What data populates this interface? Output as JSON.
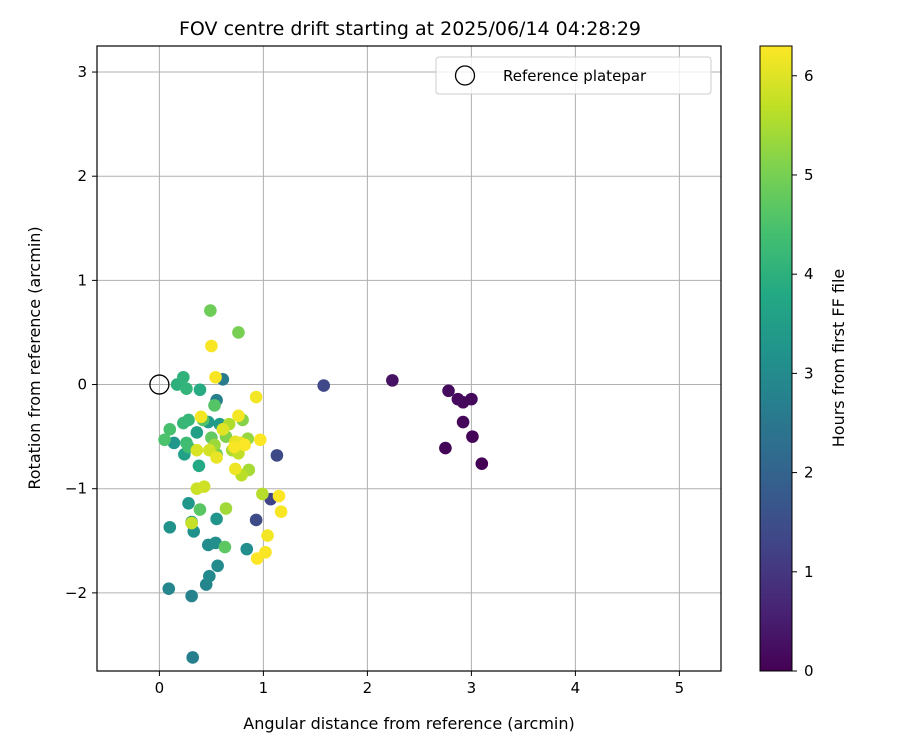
{
  "chart_data": {
    "type": "scatter",
    "title": "FOV centre drift starting at 2025/06/14 04:28:29",
    "xlabel": "Angular distance from reference (arcmin)",
    "ylabel": "Rotation from reference (arcmin)",
    "xlim": [
      -0.6,
      5.4
    ],
    "ylim": [
      -2.75,
      3.25
    ],
    "xticks": [
      0,
      1,
      2,
      3,
      4,
      5
    ],
    "yticks": [
      -2,
      -1,
      0,
      1,
      2,
      3
    ],
    "grid": true,
    "legend": {
      "placement": "top-right",
      "entries": [
        "Reference platepar"
      ]
    },
    "reference": {
      "x": 0,
      "y": 0
    },
    "colorbar": {
      "label": "Hours from first FF file",
      "colormap": "viridis",
      "range": [
        0,
        6.3
      ],
      "ticks": [
        0,
        1,
        2,
        3,
        4,
        5,
        6
      ]
    },
    "points": [
      {
        "x": 3.1,
        "y": -0.76,
        "c": 0.02
      },
      {
        "x": 3.01,
        "y": -0.5,
        "c": 0.05
      },
      {
        "x": 2.75,
        "y": -0.61,
        "c": 0.07
      },
      {
        "x": 2.92,
        "y": -0.36,
        "c": 0.1
      },
      {
        "x": 2.92,
        "y": -0.17,
        "c": 0.12
      },
      {
        "x": 3.0,
        "y": -0.14,
        "c": 0.15
      },
      {
        "x": 2.87,
        "y": -0.14,
        "c": 0.17
      },
      {
        "x": 2.78,
        "y": -0.06,
        "c": 0.2
      },
      {
        "x": 2.24,
        "y": 0.04,
        "c": 0.3
      },
      {
        "x": 1.58,
        "y": -0.01,
        "c": 1.35
      },
      {
        "x": 1.13,
        "y": -0.68,
        "c": 1.4
      },
      {
        "x": 1.07,
        "y": -1.1,
        "c": 1.25
      },
      {
        "x": 0.93,
        "y": -1.3,
        "c": 1.45
      },
      {
        "x": 0.61,
        "y": 0.05,
        "c": 2.6
      },
      {
        "x": 0.55,
        "y": -0.15,
        "c": 2.7
      },
      {
        "x": 0.32,
        "y": -2.62,
        "c": 2.7
      },
      {
        "x": 0.31,
        "y": -2.03,
        "c": 2.8
      },
      {
        "x": 0.09,
        "y": -1.96,
        "c": 2.9
      },
      {
        "x": 0.45,
        "y": -1.92,
        "c": 2.85
      },
      {
        "x": 0.48,
        "y": -1.84,
        "c": 2.95
      },
      {
        "x": 0.56,
        "y": -1.74,
        "c": 3.0
      },
      {
        "x": 0.47,
        "y": -1.54,
        "c": 3.05
      },
      {
        "x": 0.54,
        "y": -1.52,
        "c": 3.1
      },
      {
        "x": 0.84,
        "y": -1.58,
        "c": 3.1
      },
      {
        "x": 0.33,
        "y": -1.41,
        "c": 3.15
      },
      {
        "x": 0.1,
        "y": -1.37,
        "c": 3.2
      },
      {
        "x": 0.55,
        "y": -1.29,
        "c": 3.25
      },
      {
        "x": 0.31,
        "y": -1.32,
        "c": 3.25
      },
      {
        "x": 0.28,
        "y": -1.14,
        "c": 3.3
      },
      {
        "x": 0.14,
        "y": -0.56,
        "c": 3.3
      },
      {
        "x": 0.47,
        "y": -0.36,
        "c": 3.4
      },
      {
        "x": 0.58,
        "y": -0.38,
        "c": 3.45
      },
      {
        "x": 0.36,
        "y": -0.46,
        "c": 3.55
      },
      {
        "x": 0.24,
        "y": -0.67,
        "c": 3.6
      },
      {
        "x": 0.38,
        "y": -0.78,
        "c": 3.8
      },
      {
        "x": 0.39,
        "y": -0.05,
        "c": 3.85
      },
      {
        "x": 0.17,
        "y": 0.0,
        "c": 4.0
      },
      {
        "x": 0.23,
        "y": 0.07,
        "c": 4.05
      },
      {
        "x": 0.26,
        "y": -0.04,
        "c": 4.1
      },
      {
        "x": 0.28,
        "y": -0.34,
        "c": 4.15
      },
      {
        "x": 0.23,
        "y": -0.37,
        "c": 4.2
      },
      {
        "x": 0.26,
        "y": -0.56,
        "c": 4.3
      },
      {
        "x": 0.28,
        "y": -0.6,
        "c": 4.35
      },
      {
        "x": 0.1,
        "y": -0.43,
        "c": 4.45
      },
      {
        "x": 0.05,
        "y": -0.53,
        "c": 4.5
      },
      {
        "x": 0.42,
        "y": -0.34,
        "c": 4.55
      },
      {
        "x": 0.53,
        "y": -0.2,
        "c": 4.6
      },
      {
        "x": 0.39,
        "y": -1.2,
        "c": 4.65
      },
      {
        "x": 0.63,
        "y": -1.56,
        "c": 4.7
      },
      {
        "x": 0.5,
        "y": -0.51,
        "c": 4.75
      },
      {
        "x": 0.55,
        "y": -0.67,
        "c": 4.85
      },
      {
        "x": 0.49,
        "y": 0.71,
        "c": 4.9
      },
      {
        "x": 0.76,
        "y": 0.5,
        "c": 5.0
      },
      {
        "x": 0.64,
        "y": -0.5,
        "c": 5.1
      },
      {
        "x": 0.8,
        "y": -0.34,
        "c": 5.15
      },
      {
        "x": 0.85,
        "y": -0.52,
        "c": 5.3
      },
      {
        "x": 0.53,
        "y": -0.58,
        "c": 5.35
      },
      {
        "x": 0.64,
        "y": -1.19,
        "c": 5.4
      },
      {
        "x": 0.86,
        "y": -0.82,
        "c": 5.45
      },
      {
        "x": 0.7,
        "y": -0.63,
        "c": 5.5
      },
      {
        "x": 0.67,
        "y": -0.38,
        "c": 5.55
      },
      {
        "x": 0.99,
        "y": -1.05,
        "c": 5.6
      },
      {
        "x": 0.79,
        "y": -0.87,
        "c": 5.65
      },
      {
        "x": 0.76,
        "y": -0.66,
        "c": 5.7
      },
      {
        "x": 0.31,
        "y": -1.33,
        "c": 5.75
      },
      {
        "x": 0.36,
        "y": -1.0,
        "c": 5.8
      },
      {
        "x": 0.43,
        "y": -0.98,
        "c": 5.85
      },
      {
        "x": 0.48,
        "y": -0.63,
        "c": 5.9
      },
      {
        "x": 0.36,
        "y": -0.63,
        "c": 5.95
      },
      {
        "x": 0.61,
        "y": -0.43,
        "c": 6.0
      },
      {
        "x": 0.73,
        "y": -0.55,
        "c": 6.05
      },
      {
        "x": 0.78,
        "y": -0.56,
        "c": 6.1
      },
      {
        "x": 0.93,
        "y": -0.12,
        "c": 6.2
      },
      {
        "x": 0.5,
        "y": 0.37,
        "c": 6.25
      },
      {
        "x": 0.54,
        "y": 0.07,
        "c": 6.25
      },
      {
        "x": 0.4,
        "y": -0.31,
        "c": 6.2
      },
      {
        "x": 0.55,
        "y": -0.7,
        "c": 6.1
      },
      {
        "x": 0.73,
        "y": -0.81,
        "c": 6.15
      },
      {
        "x": 0.76,
        "y": -0.3,
        "c": 6.2
      },
      {
        "x": 0.72,
        "y": -0.6,
        "c": 6.25
      },
      {
        "x": 0.82,
        "y": -0.58,
        "c": 6.28
      },
      {
        "x": 0.97,
        "y": -0.53,
        "c": 6.3
      },
      {
        "x": 1.15,
        "y": -1.07,
        "c": 6.3
      },
      {
        "x": 1.17,
        "y": -1.22,
        "c": 6.25
      },
      {
        "x": 1.04,
        "y": -1.45,
        "c": 6.2
      },
      {
        "x": 1.02,
        "y": -1.61,
        "c": 6.25
      },
      {
        "x": 0.94,
        "y": -1.67,
        "c": 6.3
      }
    ]
  }
}
